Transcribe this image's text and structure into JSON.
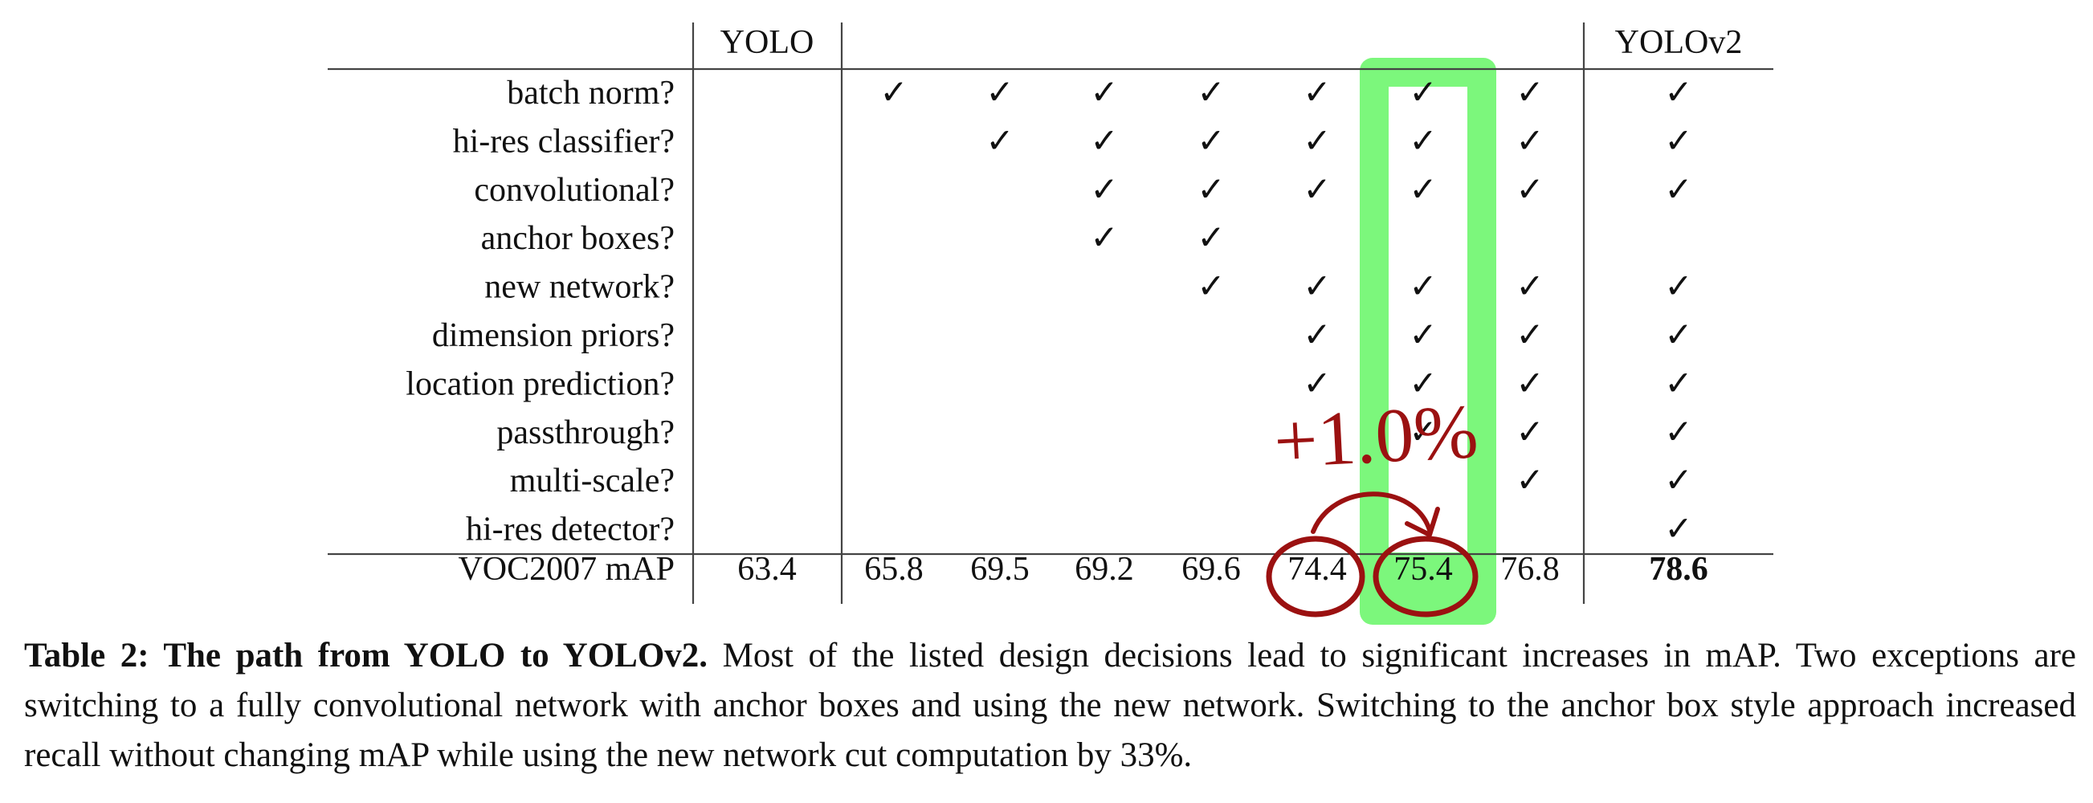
{
  "table": {
    "headers": [
      "YOLO",
      "YOLOv2"
    ],
    "rows": [
      {
        "label": "batch norm?",
        "checks": [
          false,
          true,
          true,
          true,
          true,
          true,
          true,
          true,
          true
        ]
      },
      {
        "label": "hi-res classifier?",
        "checks": [
          false,
          false,
          true,
          true,
          true,
          true,
          true,
          true,
          true
        ]
      },
      {
        "label": "convolutional?",
        "checks": [
          false,
          false,
          false,
          true,
          true,
          true,
          true,
          true,
          true
        ]
      },
      {
        "label": "anchor boxes?",
        "checks": [
          false,
          false,
          false,
          true,
          true,
          false,
          false,
          false,
          false
        ]
      },
      {
        "label": "new network?",
        "checks": [
          false,
          false,
          false,
          false,
          true,
          true,
          true,
          true,
          true
        ]
      },
      {
        "label": "dimension priors?",
        "checks": [
          false,
          false,
          false,
          false,
          false,
          true,
          true,
          true,
          true
        ]
      },
      {
        "label": "location prediction?",
        "checks": [
          false,
          false,
          false,
          false,
          false,
          true,
          true,
          true,
          true
        ]
      },
      {
        "label": "passthrough?",
        "checks": [
          false,
          false,
          false,
          false,
          false,
          false,
          true,
          true,
          true
        ]
      },
      {
        "label": "multi-scale?",
        "checks": [
          false,
          false,
          false,
          false,
          false,
          false,
          false,
          true,
          true
        ]
      },
      {
        "label": "hi-res detector?",
        "checks": [
          false,
          false,
          false,
          false,
          false,
          false,
          false,
          false,
          true
        ]
      }
    ],
    "map_label": "VOC2007 mAP",
    "map_values": [
      "63.4",
      "65.8",
      "69.5",
      "69.2",
      "69.6",
      "74.4",
      "75.4",
      "76.8",
      "78.6"
    ],
    "check_glyph": "✓"
  },
  "annotation": {
    "text": "+1.0%",
    "highlight_color": "#7cf77c",
    "ink_color": "#9b1111"
  },
  "caption": {
    "bold": "Table 2: The path from YOLO to YOLOv2.",
    "text": " Most of the listed design decisions lead to significant increases in mAP. Two exceptions are switching to a fully convolutional network with anchor boxes and using the new network. Switching to the anchor box style approach increased recall without changing mAP while using the new network cut computation by 33%."
  }
}
